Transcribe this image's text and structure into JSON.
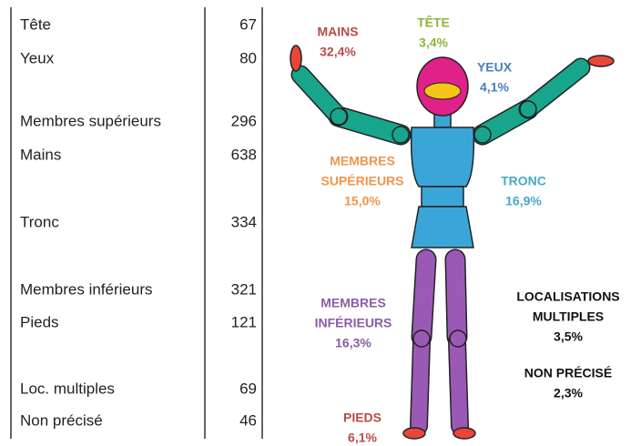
{
  "table": {
    "rows": [
      [
        "Tête",
        67
      ],
      [
        "Yeux",
        80
      ],
      [
        "Membres supérieurs",
        296
      ],
      [
        "Mains",
        638
      ],
      [
        "Tronc",
        334
      ],
      [
        "Membres inférieurs",
        321
      ],
      [
        "Pieds",
        121
      ],
      [
        "Loc. multiples",
        69
      ],
      [
        "Non précisé",
        46
      ]
    ]
  },
  "figure": {
    "labels": [
      {
        "lines": [
          "MAINS"
        ],
        "value": "32,4%"
      },
      {
        "lines": [
          "TÊTE"
        ],
        "value": "3,4%"
      },
      {
        "lines": [
          "YEUX"
        ],
        "value": "4,1%"
      },
      {
        "lines": [
          "MEMBRES",
          "SUPÉRIEURS"
        ],
        "value": "15,0%"
      },
      {
        "lines": [
          "TRONC"
        ],
        "value": "16,9%"
      },
      {
        "lines": [
          "MEMBRES",
          "INFÉRIEURS"
        ],
        "value": "16,3%"
      },
      {
        "lines": [
          "LOCALISATIONS",
          "MULTIPLES"
        ],
        "value": "3,5%"
      },
      {
        "lines": [
          "NON PRÉCISÉ"
        ],
        "value": "2,3%"
      },
      {
        "lines": [
          "PIEDS"
        ],
        "value": "6,1%"
      }
    ]
  }
}
